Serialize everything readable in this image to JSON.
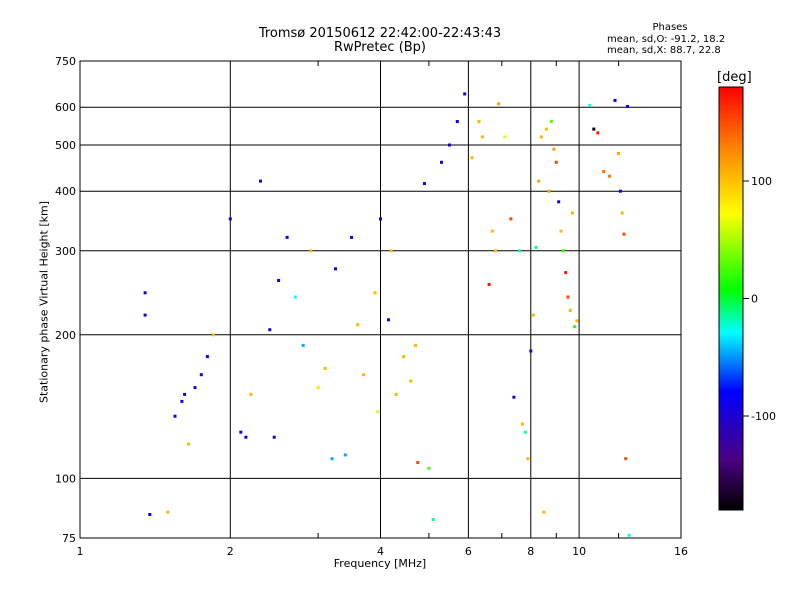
{
  "figure": {
    "title_line1": "Tromsø 20150612 22:42:00-22:43:43",
    "title_line2": "RwPretec (Bp)",
    "phases_title": "Phases",
    "phases_o": "mean, sd,O: -91.2, 18.2",
    "phases_x": "mean, sd,X: 88.7, 22.8",
    "colorbar_unit": "[deg]"
  },
  "chart_data": {
    "type": "scatter",
    "xlabel": "Frequency [MHz]",
    "ylabel": "Stationary phase Virtual Height [km]",
    "xscale": "log",
    "yscale": "log",
    "xlim": [
      1,
      16
    ],
    "ylim": [
      75,
      750
    ],
    "xticks": [
      1,
      2,
      4,
      6,
      8,
      10,
      16
    ],
    "yticks": [
      75,
      100,
      200,
      300,
      400,
      500,
      600,
      750
    ],
    "grid": true,
    "colorbar": {
      "label": "[deg]",
      "range": [
        -180,
        180
      ],
      "ticks": [
        -100,
        0,
        100
      ]
    },
    "points": [
      [
        1.35,
        245,
        -100
      ],
      [
        1.35,
        220,
        -100
      ],
      [
        1.38,
        84,
        -100
      ],
      [
        1.5,
        85,
        100
      ],
      [
        1.55,
        135,
        -100
      ],
      [
        1.6,
        145,
        -100
      ],
      [
        1.62,
        150,
        -100
      ],
      [
        1.65,
        118,
        100
      ],
      [
        1.7,
        155,
        -100
      ],
      [
        1.75,
        165,
        -100
      ],
      [
        1.8,
        180,
        -100
      ],
      [
        1.85,
        200,
        100
      ],
      [
        2.0,
        350,
        -100
      ],
      [
        2.1,
        125,
        -100
      ],
      [
        2.15,
        122,
        -100
      ],
      [
        2.2,
        150,
        100
      ],
      [
        2.3,
        420,
        -100
      ],
      [
        2.45,
        122,
        -100
      ],
      [
        2.4,
        205,
        -100
      ],
      [
        2.5,
        260,
        -100
      ],
      [
        2.6,
        320,
        -100
      ],
      [
        2.7,
        240,
        -30
      ],
      [
        2.8,
        190,
        -50
      ],
      [
        2.9,
        300,
        100
      ],
      [
        3.0,
        155,
        80
      ],
      [
        3.1,
        170,
        100
      ],
      [
        3.2,
        110,
        -50
      ],
      [
        3.25,
        275,
        -100
      ],
      [
        3.4,
        112,
        -50
      ],
      [
        3.5,
        320,
        -100
      ],
      [
        3.6,
        210,
        100
      ],
      [
        3.7,
        165,
        100
      ],
      [
        3.9,
        245,
        100
      ],
      [
        3.95,
        138,
        60
      ],
      [
        4.0,
        350,
        -100
      ],
      [
        4.15,
        215,
        -100
      ],
      [
        4.2,
        300,
        100
      ],
      [
        4.3,
        150,
        100
      ],
      [
        4.45,
        180,
        100
      ],
      [
        4.6,
        160,
        100
      ],
      [
        4.7,
        190,
        100
      ],
      [
        4.75,
        108,
        150
      ],
      [
        4.9,
        415,
        -100
      ],
      [
        5.0,
        105,
        30
      ],
      [
        5.1,
        82,
        -20
      ],
      [
        5.3,
        460,
        -100
      ],
      [
        5.5,
        500,
        -100
      ],
      [
        5.7,
        560,
        -100
      ],
      [
        5.9,
        640,
        -100
      ],
      [
        6.1,
        470,
        100
      ],
      [
        6.3,
        560,
        100
      ],
      [
        6.4,
        520,
        100
      ],
      [
        6.6,
        255,
        170
      ],
      [
        6.7,
        330,
        100
      ],
      [
        6.8,
        300,
        100
      ],
      [
        6.9,
        610,
        110
      ],
      [
        7.1,
        520,
        60
      ],
      [
        7.3,
        350,
        150
      ],
      [
        7.4,
        148,
        -100
      ],
      [
        7.6,
        300,
        -20
      ],
      [
        7.7,
        130,
        100
      ],
      [
        7.8,
        125,
        -20
      ],
      [
        7.9,
        110,
        100
      ],
      [
        8.0,
        185,
        -100
      ],
      [
        8.1,
        220,
        100
      ],
      [
        8.2,
        305,
        -10
      ],
      [
        8.3,
        420,
        110
      ],
      [
        8.4,
        520,
        100
      ],
      [
        8.5,
        85,
        100
      ],
      [
        8.6,
        540,
        100
      ],
      [
        8.7,
        400,
        110
      ],
      [
        8.8,
        560,
        30
      ],
      [
        8.9,
        490,
        110
      ],
      [
        9.0,
        460,
        150
      ],
      [
        9.1,
        380,
        -100
      ],
      [
        9.2,
        330,
        100
      ],
      [
        9.3,
        300,
        20
      ],
      [
        9.4,
        270,
        170
      ],
      [
        9.5,
        240,
        150
      ],
      [
        9.6,
        225,
        100
      ],
      [
        9.7,
        360,
        100
      ],
      [
        9.8,
        208,
        20
      ],
      [
        9.9,
        214,
        100
      ],
      [
        10.5,
        605,
        -30
      ],
      [
        10.7,
        540,
        -180
      ],
      [
        10.9,
        530,
        170
      ],
      [
        11.2,
        440,
        130
      ],
      [
        11.5,
        430,
        130
      ],
      [
        11.8,
        620,
        -100
      ],
      [
        12.0,
        480,
        110
      ],
      [
        12.1,
        400,
        -100
      ],
      [
        12.2,
        360,
        100
      ],
      [
        12.3,
        325,
        150
      ],
      [
        12.4,
        110,
        150
      ],
      [
        12.5,
        602,
        -100
      ],
      [
        12.6,
        76,
        -30
      ]
    ]
  }
}
